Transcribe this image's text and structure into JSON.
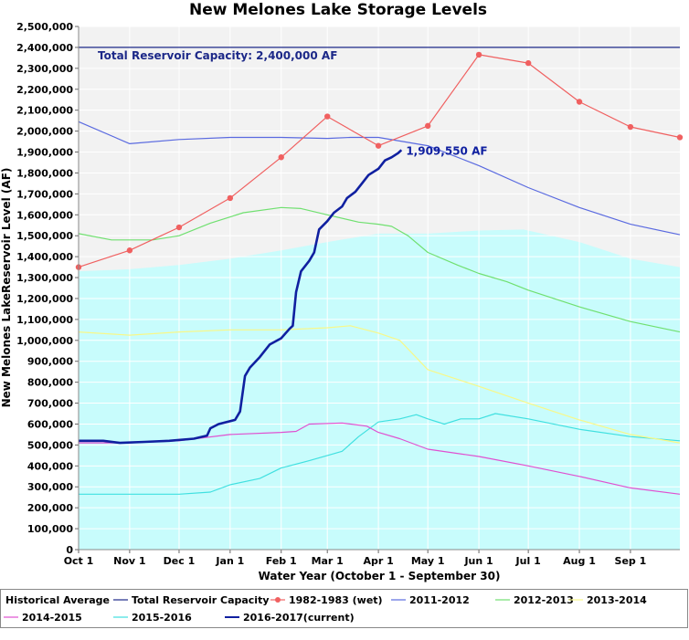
{
  "chart_data": {
    "type": "line",
    "title": "New Melones Lake Storage Levels",
    "xlabel": "Water Year (October 1 - September 30)",
    "ylabel": "New Melones LakeReservoir Level (AF)",
    "x_range": [
      0,
      365
    ],
    "ylim": [
      0,
      2500000
    ],
    "y_ticks": [
      0,
      100000,
      200000,
      300000,
      400000,
      500000,
      600000,
      700000,
      800000,
      900000,
      1000000,
      1100000,
      1200000,
      1300000,
      1400000,
      1500000,
      1600000,
      1700000,
      1800000,
      1900000,
      2000000,
      2100000,
      2200000,
      2300000,
      2400000,
      2500000
    ],
    "y_tick_labels": [
      "0",
      "100,000",
      "200,000",
      "300,000",
      "400,000",
      "500,000",
      "600,000",
      "700,000",
      "800,000",
      "900,000",
      "1,000,000",
      "1,100,000",
      "1,200,000",
      "1,300,000",
      "1,400,000",
      "1,500,000",
      "1,600,000",
      "1,700,000",
      "1,800,000",
      "1,900,000",
      "2,000,000",
      "2,100,000",
      "2,200,000",
      "2,300,000",
      "2,400,000",
      "2,500,000"
    ],
    "x_ticks": [
      {
        "label": "Oct 1",
        "day": 0
      },
      {
        "label": "Nov 1",
        "day": 31
      },
      {
        "label": "Dec 1",
        "day": 61
      },
      {
        "label": "Jan 1",
        "day": 92
      },
      {
        "label": "Feb 1",
        "day": 123
      },
      {
        "label": "Mar 1",
        "day": 151
      },
      {
        "label": "Apr 1",
        "day": 182
      },
      {
        "label": "May 1",
        "day": 212
      },
      {
        "label": "Jun 1",
        "day": 243
      },
      {
        "label": "Jul 1",
        "day": 273
      },
      {
        "label": "Aug 1",
        "day": 304
      },
      {
        "label": "Sep 1",
        "day": 335
      }
    ],
    "grid": true,
    "legend_position": "bottom",
    "capacity": {
      "value": 2400000,
      "label": "Total Reservoir Capacity: 2,400,000 AF"
    },
    "current_label": {
      "text": "1,909,550 AF",
      "day": 196,
      "value": 1909550
    },
    "series": [
      {
        "name": "Historical Average",
        "style": "area",
        "color": "#c8fcfc",
        "points": [
          [
            0,
            1330000
          ],
          [
            31,
            1340000
          ],
          [
            61,
            1360000
          ],
          [
            92,
            1390000
          ],
          [
            123,
            1430000
          ],
          [
            151,
            1470000
          ],
          [
            182,
            1510000
          ],
          [
            212,
            1510000
          ],
          [
            243,
            1525000
          ],
          [
            270,
            1530000
          ],
          [
            304,
            1470000
          ],
          [
            335,
            1390000
          ],
          [
            365,
            1350000
          ]
        ]
      },
      {
        "name": "Total Reservoir Capacity",
        "style": "line",
        "color": "#1c2888",
        "points": [
          [
            0,
            2400000
          ],
          [
            365,
            2400000
          ]
        ]
      },
      {
        "name": "1982-1983 (wet)",
        "style": "line-markers",
        "color": "#f06060",
        "points": [
          [
            0,
            1350000
          ],
          [
            31,
            1430000
          ],
          [
            61,
            1540000
          ],
          [
            92,
            1680000
          ],
          [
            123,
            1875000
          ],
          [
            151,
            2070000
          ],
          [
            182,
            1930000
          ],
          [
            212,
            2025000
          ],
          [
            243,
            2365000
          ],
          [
            273,
            2325000
          ],
          [
            304,
            2140000
          ],
          [
            335,
            2020000
          ],
          [
            365,
            1970000
          ]
        ]
      },
      {
        "name": "2011-2012",
        "style": "line",
        "color": "#5a6ae0",
        "points": [
          [
            0,
            2045000
          ],
          [
            31,
            1940000
          ],
          [
            61,
            1960000
          ],
          [
            92,
            1970000
          ],
          [
            123,
            1970000
          ],
          [
            151,
            1965000
          ],
          [
            165,
            1970000
          ],
          [
            182,
            1970000
          ],
          [
            212,
            1930000
          ],
          [
            243,
            1835000
          ],
          [
            273,
            1730000
          ],
          [
            304,
            1635000
          ],
          [
            335,
            1555000
          ],
          [
            365,
            1505000
          ]
        ]
      },
      {
        "name": "2012-2013",
        "style": "line",
        "color": "#70e070",
        "points": [
          [
            0,
            1510000
          ],
          [
            20,
            1480000
          ],
          [
            45,
            1480000
          ],
          [
            61,
            1500000
          ],
          [
            80,
            1560000
          ],
          [
            100,
            1610000
          ],
          [
            123,
            1635000
          ],
          [
            135,
            1630000
          ],
          [
            151,
            1600000
          ],
          [
            170,
            1565000
          ],
          [
            182,
            1555000
          ],
          [
            190,
            1545000
          ],
          [
            200,
            1500000
          ],
          [
            212,
            1420000
          ],
          [
            230,
            1360000
          ],
          [
            243,
            1320000
          ],
          [
            260,
            1280000
          ],
          [
            273,
            1240000
          ],
          [
            304,
            1160000
          ],
          [
            335,
            1090000
          ],
          [
            365,
            1040000
          ]
        ]
      },
      {
        "name": "2013-2014",
        "style": "line",
        "color": "#f8f888",
        "points": [
          [
            0,
            1040000
          ],
          [
            31,
            1025000
          ],
          [
            61,
            1040000
          ],
          [
            92,
            1050000
          ],
          [
            123,
            1050000
          ],
          [
            151,
            1060000
          ],
          [
            165,
            1070000
          ],
          [
            182,
            1035000
          ],
          [
            195,
            1000000
          ],
          [
            212,
            860000
          ],
          [
            243,
            780000
          ],
          [
            273,
            700000
          ],
          [
            304,
            620000
          ],
          [
            335,
            550000
          ],
          [
            365,
            510000
          ]
        ]
      },
      {
        "name": "2014-2015",
        "style": "line",
        "color": "#e050d0",
        "points": [
          [
            0,
            510000
          ],
          [
            31,
            510000
          ],
          [
            61,
            520000
          ],
          [
            92,
            550000
          ],
          [
            123,
            560000
          ],
          [
            132,
            565000
          ],
          [
            140,
            600000
          ],
          [
            160,
            605000
          ],
          [
            175,
            590000
          ],
          [
            182,
            560000
          ],
          [
            195,
            530000
          ],
          [
            212,
            480000
          ],
          [
            243,
            445000
          ],
          [
            273,
            400000
          ],
          [
            304,
            350000
          ],
          [
            335,
            295000
          ],
          [
            365,
            265000
          ]
        ]
      },
      {
        "name": "2015-2016",
        "style": "line",
        "color": "#40e0e0",
        "points": [
          [
            0,
            265000
          ],
          [
            31,
            265000
          ],
          [
            61,
            265000
          ],
          [
            80,
            275000
          ],
          [
            92,
            310000
          ],
          [
            110,
            340000
          ],
          [
            123,
            390000
          ],
          [
            140,
            425000
          ],
          [
            151,
            450000
          ],
          [
            160,
            470000
          ],
          [
            170,
            540000
          ],
          [
            182,
            610000
          ],
          [
            195,
            625000
          ],
          [
            205,
            645000
          ],
          [
            212,
            625000
          ],
          [
            222,
            600000
          ],
          [
            232,
            625000
          ],
          [
            243,
            625000
          ],
          [
            253,
            650000
          ],
          [
            273,
            625000
          ],
          [
            304,
            575000
          ],
          [
            335,
            540000
          ],
          [
            365,
            520000
          ]
        ]
      },
      {
        "name": "2016-2017(current)",
        "style": "line-bold",
        "color": "#1020a0",
        "points": [
          [
            0,
            520000
          ],
          [
            15,
            520000
          ],
          [
            25,
            510000
          ],
          [
            40,
            515000
          ],
          [
            55,
            520000
          ],
          [
            70,
            530000
          ],
          [
            78,
            545000
          ],
          [
            80,
            580000
          ],
          [
            85,
            600000
          ],
          [
            95,
            620000
          ],
          [
            98,
            660000
          ],
          [
            101,
            830000
          ],
          [
            104,
            870000
          ],
          [
            110,
            920000
          ],
          [
            116,
            980000
          ],
          [
            123,
            1010000
          ],
          [
            128,
            1055000
          ],
          [
            130,
            1070000
          ],
          [
            132,
            1230000
          ],
          [
            135,
            1330000
          ],
          [
            140,
            1380000
          ],
          [
            143,
            1420000
          ],
          [
            146,
            1530000
          ],
          [
            151,
            1570000
          ],
          [
            155,
            1610000
          ],
          [
            160,
            1640000
          ],
          [
            163,
            1680000
          ],
          [
            168,
            1710000
          ],
          [
            172,
            1750000
          ],
          [
            176,
            1790000
          ],
          [
            182,
            1820000
          ],
          [
            186,
            1860000
          ],
          [
            190,
            1875000
          ],
          [
            194,
            1895000
          ],
          [
            196,
            1909550
          ]
        ]
      }
    ]
  }
}
